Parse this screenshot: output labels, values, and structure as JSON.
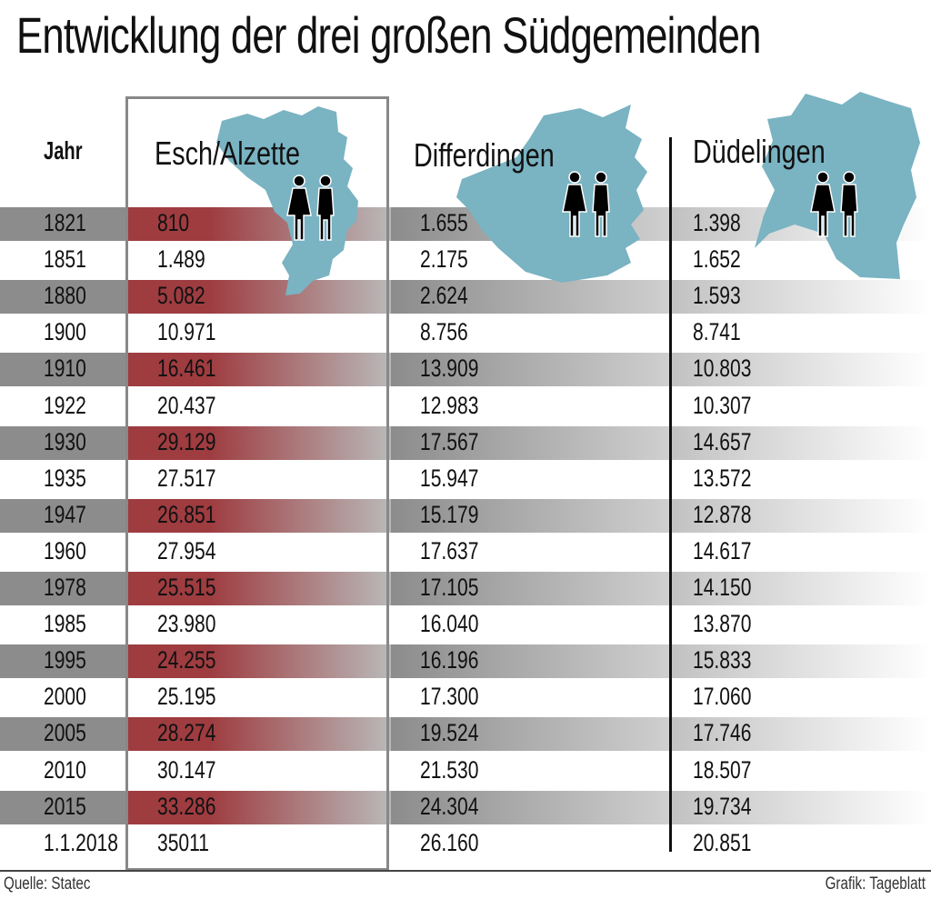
{
  "chart_data": {
    "type": "table",
    "title": "Entwicklung der drei großen Südgemeinden",
    "columns": [
      "Jahr",
      "Esch/Alzette",
      "Differdingen",
      "Düdelingen"
    ],
    "rows": [
      {
        "year": "1821",
        "values": [
          "810",
          "1.655",
          "1.398"
        ]
      },
      {
        "year": "1851",
        "values": [
          "1.489",
          "2.175",
          "1.652"
        ]
      },
      {
        "year": "1880",
        "values": [
          "5.082",
          "2.624",
          "1.593"
        ]
      },
      {
        "year": "1900",
        "values": [
          "10.971",
          "8.756",
          "8.741"
        ]
      },
      {
        "year": "1910",
        "values": [
          "16.461",
          "13.909",
          "10.803"
        ]
      },
      {
        "year": "1922",
        "values": [
          "20.437",
          "12.983",
          "10.307"
        ]
      },
      {
        "year": "1930",
        "values": [
          "29.129",
          "17.567",
          "14.657"
        ]
      },
      {
        "year": "1935",
        "values": [
          "27.517",
          "15.947",
          "13.572"
        ]
      },
      {
        "year": "1947",
        "values": [
          "26.851",
          "15.179",
          "12.878"
        ]
      },
      {
        "year": "1960",
        "values": [
          "27.954",
          "17.637",
          "14.617"
        ]
      },
      {
        "year": "1978",
        "values": [
          "25.515",
          "17.105",
          "14.150"
        ]
      },
      {
        "year": "1985",
        "values": [
          "23.980",
          "16.040",
          "13.870"
        ]
      },
      {
        "year": "1995",
        "values": [
          "24.255",
          "16.196",
          "15.833"
        ]
      },
      {
        "year": "2000",
        "values": [
          "25.195",
          "17.300",
          "17.060"
        ]
      },
      {
        "year": "2005",
        "values": [
          "28.274",
          "19.524",
          "17.746"
        ]
      },
      {
        "year": "2010",
        "values": [
          "30.147",
          "21.530",
          "18.507"
        ]
      },
      {
        "year": "2015",
        "values": [
          "33.286",
          "24.304",
          "19.734"
        ]
      },
      {
        "year": "1.1.2018",
        "values": [
          "35011",
          "26.160",
          "20.851"
        ]
      }
    ],
    "source": "Quelle: Statec",
    "credit": "Grafik: Tageblatt"
  },
  "colors": {
    "highlight_red": "#9e3c40",
    "stripe_gray": "#8c8c8c",
    "map_blue": "#7ab3c2"
  },
  "icons": [
    "map-esch-icon",
    "map-differdingen-icon",
    "map-dudelingen-icon",
    "people-icon"
  ]
}
